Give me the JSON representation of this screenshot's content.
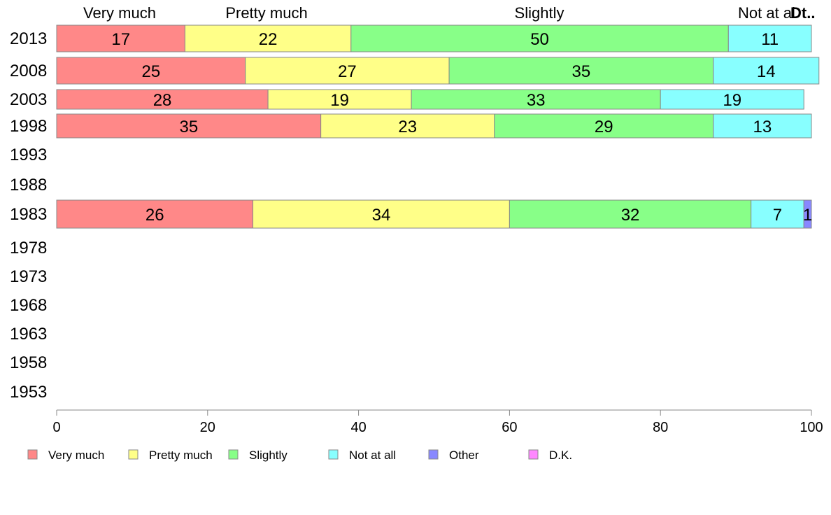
{
  "chart_data": {
    "type": "bar",
    "orientation": "horizontal",
    "stacked": true,
    "categories": [
      "2013",
      "2008",
      "2003",
      "1998",
      "1993",
      "1988",
      "1983",
      "1978",
      "1973",
      "1968",
      "1963",
      "1958",
      "1953"
    ],
    "series": [
      {
        "name": "Very much",
        "color": "#ff8888",
        "values": [
          17,
          25,
          28,
          35,
          null,
          null,
          26,
          null,
          null,
          null,
          null,
          null,
          null
        ]
      },
      {
        "name": "Pretty much",
        "color": "#ffff88",
        "values": [
          22,
          27,
          19,
          23,
          null,
          null,
          34,
          null,
          null,
          null,
          null,
          null,
          null
        ]
      },
      {
        "name": "Slightly",
        "color": "#88ff88",
        "values": [
          50,
          35,
          33,
          29,
          null,
          null,
          32,
          null,
          null,
          null,
          null,
          null,
          null
        ]
      },
      {
        "name": "Not at all",
        "color": "#88ffff",
        "values": [
          11,
          14,
          19,
          13,
          null,
          null,
          7,
          null,
          null,
          null,
          null,
          null,
          null
        ]
      },
      {
        "name": "Other",
        "color": "#8888ff",
        "values": [
          0,
          0,
          0,
          0,
          null,
          null,
          1,
          null,
          null,
          null,
          null,
          null,
          null
        ]
      },
      {
        "name": "D.K.",
        "color": "#ff88ff",
        "values": [
          0,
          0,
          0,
          0,
          null,
          null,
          0,
          null,
          null,
          null,
          null,
          null,
          null
        ]
      }
    ],
    "top_labels": [
      "Very much",
      "Pretty much",
      "Slightly",
      "Not at al",
      "Dt.."
    ],
    "x_ticks": [
      "0",
      "20",
      "40",
      "60",
      "80",
      "100"
    ],
    "xlim": [
      0,
      100
    ],
    "grid": false,
    "legend_position": "bottom"
  }
}
